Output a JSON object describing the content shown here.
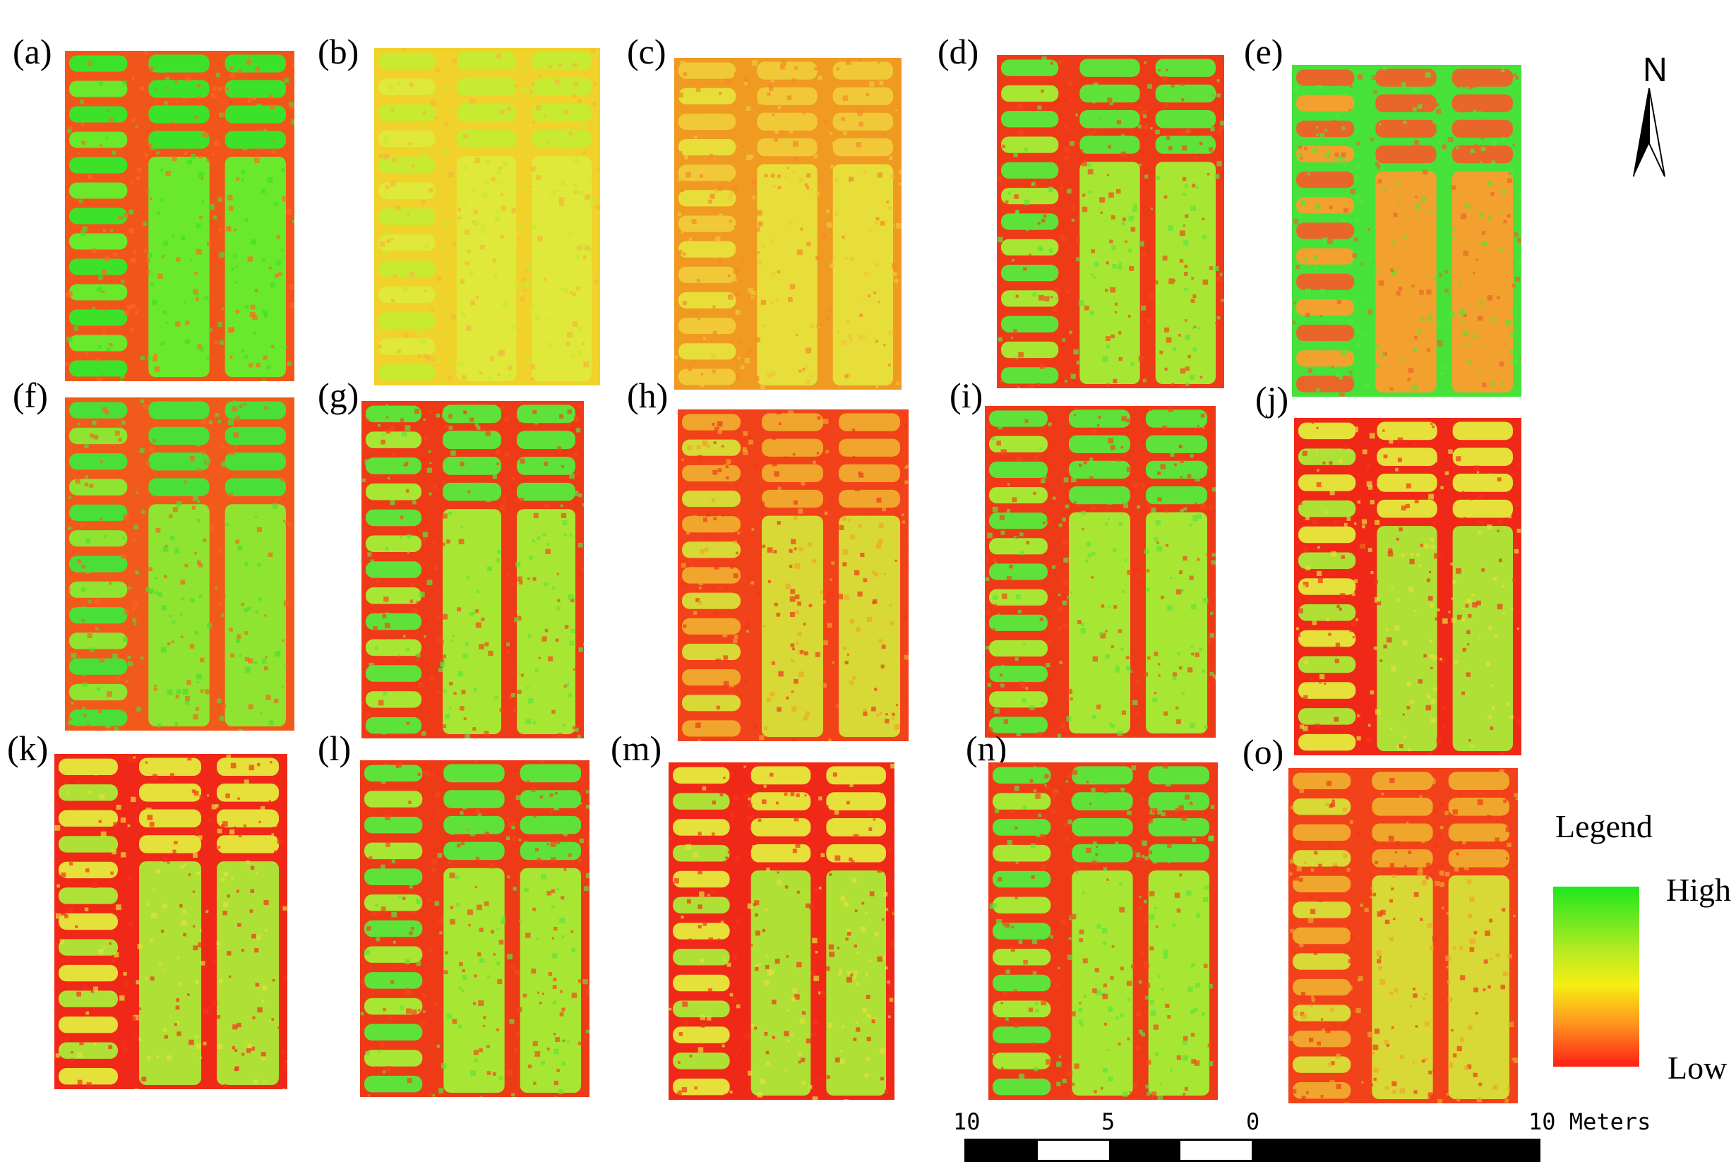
{
  "panels": [
    {
      "label": "(a)",
      "palette": "green"
    },
    {
      "label": "(b)",
      "palette": "yellow"
    },
    {
      "label": "(c)",
      "palette": "orange"
    },
    {
      "label": "(d)",
      "palette": "redgreen"
    },
    {
      "label": "(e)",
      "palette": "invert"
    },
    {
      "label": "(f)",
      "palette": "greenish"
    },
    {
      "label": "(g)",
      "palette": "redgreen"
    },
    {
      "label": "(h)",
      "palette": "orangered"
    },
    {
      "label": "(i)",
      "palette": "redgreen"
    },
    {
      "label": "(j)",
      "palette": "redyellow"
    },
    {
      "label": "(k)",
      "palette": "redyellow"
    },
    {
      "label": "(l)",
      "palette": "redgreen"
    },
    {
      "label": "(m)",
      "palette": "redyellow"
    },
    {
      "label": "(n)",
      "palette": "redgreen"
    },
    {
      "label": "(o)",
      "palette": "orangered"
    }
  ],
  "north_arrow": {
    "label": "N"
  },
  "legend": {
    "title": "Legend",
    "high": "High",
    "low": "Low",
    "colors": [
      "#1ee81e",
      "#f6ee12",
      "#ff1e14"
    ]
  },
  "scale_bar": {
    "ticks": [
      "10",
      "5",
      "0",
      "10"
    ],
    "unit": "Meters"
  }
}
